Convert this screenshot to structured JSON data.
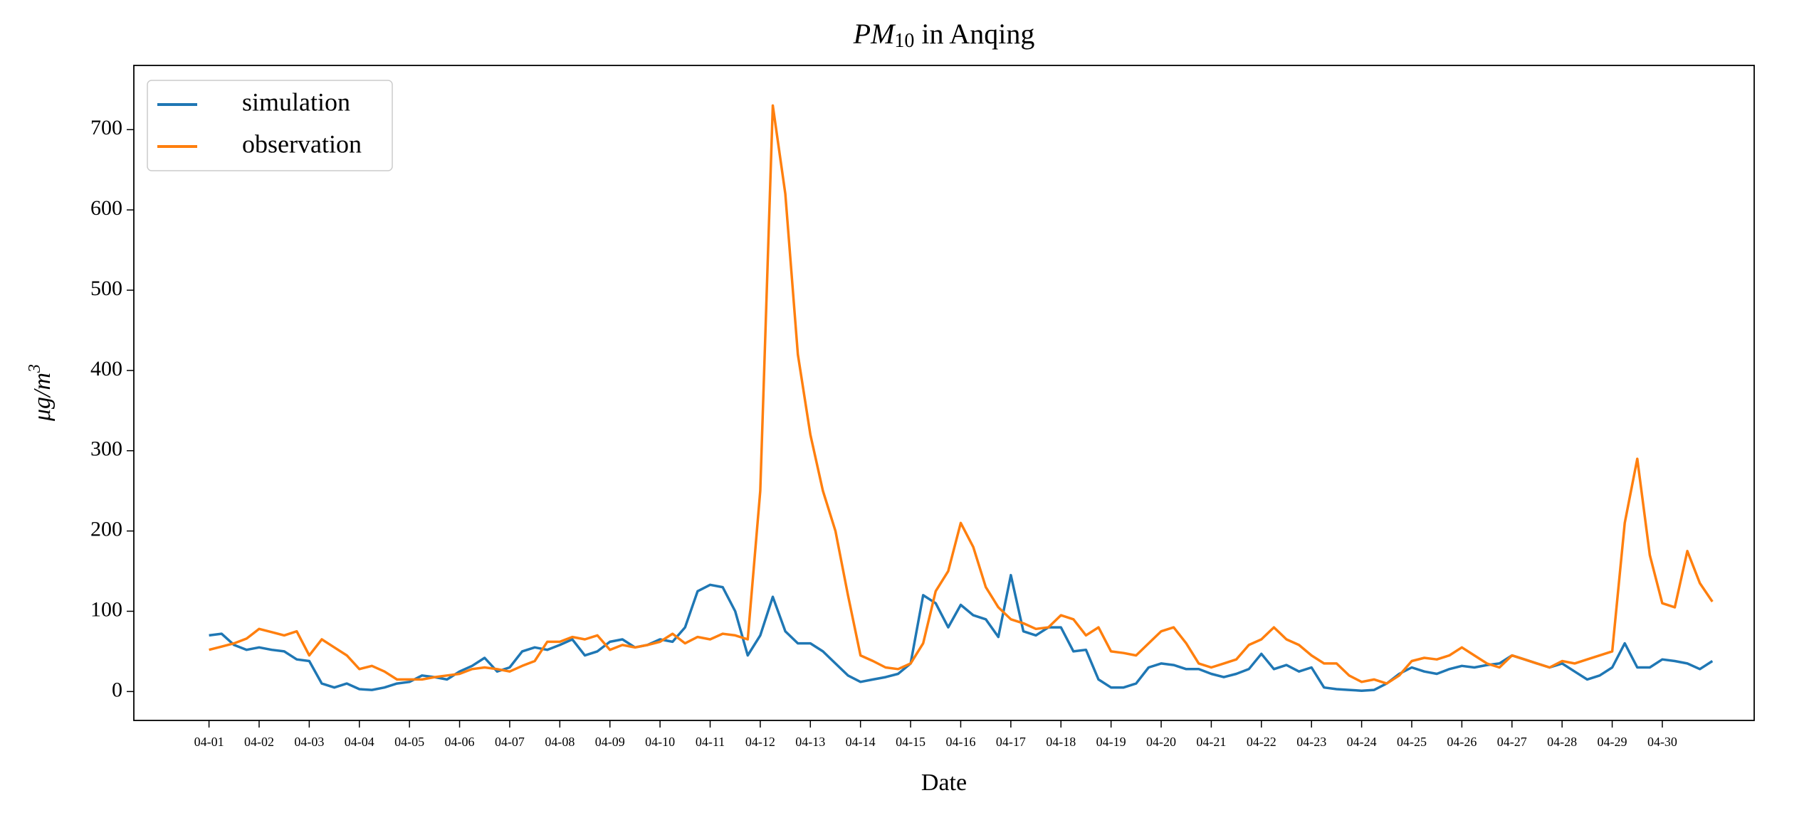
{
  "chart_data": {
    "type": "line",
    "title": [
      "PM",
      "10",
      " in Anqing"
    ],
    "x_label": "Date",
    "y_label": [
      "μg/m",
      "3"
    ],
    "x": [
      0,
      6,
      12,
      18,
      24,
      30,
      36,
      42,
      48,
      54,
      60,
      66,
      72,
      78,
      84,
      90,
      96,
      102,
      108,
      114,
      120,
      126,
      132,
      138,
      144,
      150,
      156,
      162,
      168,
      174,
      180,
      186,
      192,
      198,
      204,
      210,
      216,
      222,
      228,
      234,
      240,
      246,
      252,
      258,
      264,
      270,
      276,
      282,
      288,
      294,
      300,
      306,
      312,
      318,
      324,
      330,
      336,
      342,
      348,
      354,
      360,
      366,
      372,
      378,
      384,
      390,
      396,
      402,
      408,
      414,
      420,
      426,
      432,
      438,
      444,
      450,
      456,
      462,
      468,
      474,
      480,
      486,
      492,
      498,
      504,
      510,
      516,
      522,
      528,
      534,
      540,
      546,
      552,
      558,
      564,
      570,
      576,
      582,
      588,
      594,
      600,
      606,
      612,
      618,
      624,
      630,
      636,
      642,
      648,
      654,
      660,
      666,
      672,
      678,
      684,
      690,
      696,
      702,
      708,
      714,
      720
    ],
    "series": [
      {
        "name": "simulation",
        "color": "#1f77b4",
        "values": [
          70,
          72,
          58,
          52,
          55,
          52,
          50,
          40,
          38,
          10,
          5,
          10,
          3,
          2,
          5,
          10,
          12,
          20,
          18,
          15,
          25,
          32,
          42,
          25,
          30,
          50,
          55,
          52,
          58,
          65,
          45,
          50,
          62,
          65,
          55,
          58,
          65,
          62,
          80,
          125,
          133,
          130,
          100,
          45,
          70,
          118,
          75,
          60,
          60,
          50,
          35,
          20,
          12,
          15,
          18,
          22,
          35,
          120,
          110,
          80,
          108,
          95,
          90,
          68,
          145,
          75,
          70,
          80,
          80,
          50,
          52,
          15,
          5,
          5,
          10,
          30,
          35,
          33,
          28,
          28,
          22,
          18,
          22,
          28,
          47,
          28,
          33,
          25,
          30,
          5,
          3,
          2,
          1,
          2,
          10,
          22,
          30,
          25,
          22,
          28,
          32,
          30,
          33,
          35,
          45,
          40,
          35,
          30,
          35,
          25,
          15,
          20,
          30,
          60,
          30,
          30,
          40,
          38,
          35,
          28,
          38
        ]
      },
      {
        "name": "observation",
        "color": "#ff7f0e",
        "values": [
          52,
          56,
          60,
          66,
          78,
          74,
          70,
          75,
          45,
          65,
          55,
          45,
          28,
          32,
          25,
          15,
          15,
          15,
          18,
          20,
          22,
          28,
          30,
          28,
          25,
          32,
          38,
          62,
          62,
          68,
          65,
          70,
          52,
          58,
          55,
          58,
          62,
          72,
          60,
          68,
          65,
          72,
          70,
          65,
          250,
          730,
          620,
          420,
          320,
          250,
          200,
          120,
          45,
          38,
          30,
          28,
          35,
          60,
          125,
          150,
          210,
          180,
          130,
          105,
          90,
          85,
          78,
          80,
          95,
          90,
          70,
          80,
          50,
          48,
          45,
          60,
          75,
          80,
          60,
          35,
          30,
          35,
          40,
          58,
          65,
          80,
          65,
          58,
          45,
          35,
          35,
          20,
          12,
          15,
          10,
          20,
          38,
          42,
          40,
          45,
          55,
          45,
          35,
          30,
          45,
          40,
          35,
          30,
          38,
          35,
          40,
          45,
          50,
          210,
          290,
          170,
          110,
          105,
          175,
          135,
          112
        ]
      }
    ],
    "xlim": [
      -36,
      740
    ],
    "xticks": [
      {
        "value": 0,
        "label": "04-01"
      },
      {
        "value": 24,
        "label": "04-02"
      },
      {
        "value": 48,
        "label": "04-03"
      },
      {
        "value": 72,
        "label": "04-04"
      },
      {
        "value": 96,
        "label": "04-05"
      },
      {
        "value": 120,
        "label": "04-06"
      },
      {
        "value": 144,
        "label": "04-07"
      },
      {
        "value": 168,
        "label": "04-08"
      },
      {
        "value": 192,
        "label": "04-09"
      },
      {
        "value": 216,
        "label": "04-10"
      },
      {
        "value": 240,
        "label": "04-11"
      },
      {
        "value": 264,
        "label": "04-12"
      },
      {
        "value": 288,
        "label": "04-13"
      },
      {
        "value": 312,
        "label": "04-14"
      },
      {
        "value": 336,
        "label": "04-15"
      },
      {
        "value": 360,
        "label": "04-16"
      },
      {
        "value": 384,
        "label": "04-17"
      },
      {
        "value": 408,
        "label": "04-18"
      },
      {
        "value": 432,
        "label": "04-19"
      },
      {
        "value": 456,
        "label": "04-20"
      },
      {
        "value": 480,
        "label": "04-21"
      },
      {
        "value": 504,
        "label": "04-22"
      },
      {
        "value": 528,
        "label": "04-23"
      },
      {
        "value": 552,
        "label": "04-24"
      },
      {
        "value": 576,
        "label": "04-25"
      },
      {
        "value": 600,
        "label": "04-26"
      },
      {
        "value": 624,
        "label": "04-27"
      },
      {
        "value": 648,
        "label": "04-28"
      },
      {
        "value": 672,
        "label": "04-29"
      },
      {
        "value": 696,
        "label": "04-30"
      }
    ],
    "ylim": [
      -36,
      780
    ],
    "yticks": [
      0,
      100,
      200,
      300,
      400,
      500,
      600,
      700
    ],
    "legend": "upper left"
  }
}
